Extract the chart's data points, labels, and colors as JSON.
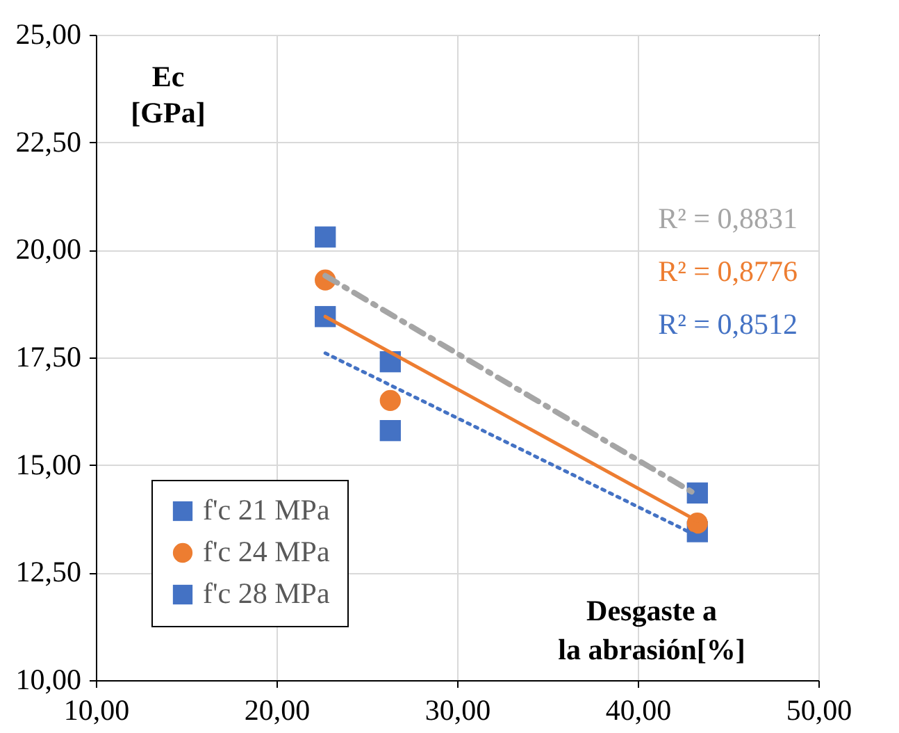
{
  "chart_data": {
    "type": "scatter",
    "xlabel": "Desgaste a\nla abrasión[%]",
    "ylabel": "Ec\n[GPa]",
    "xlim": [
      10,
      50
    ],
    "ylim": [
      10,
      25
    ],
    "xticks": [
      {
        "value": 10,
        "label": "10,00"
      },
      {
        "value": 20,
        "label": "20,00"
      },
      {
        "value": 30,
        "label": "30,00"
      },
      {
        "value": 40,
        "label": "40,00"
      },
      {
        "value": 50,
        "label": "50,00"
      }
    ],
    "yticks": [
      {
        "value": 10,
        "label": "10,00"
      },
      {
        "value": 12.5,
        "label": "12,50"
      },
      {
        "value": 15,
        "label": "15,00"
      },
      {
        "value": 17.5,
        "label": "17,50"
      },
      {
        "value": 20,
        "label": "20,00"
      },
      {
        "value": 22.5,
        "label": "22,50"
      },
      {
        "value": 25,
        "label": "25,00"
      }
    ],
    "grid": true,
    "legend": "bottom left",
    "series": [
      {
        "name": "f'c 21 MPa",
        "color": "#4472c4",
        "marker": "square",
        "x": [
          22.7,
          26.3,
          43.3
        ],
        "values": [
          20.3,
          17.4,
          14.35
        ]
      },
      {
        "name": "f'c 24 MPa",
        "color": "#ed7d31",
        "marker": "circle",
        "x": [
          22.7,
          26.3,
          43.3
        ],
        "values": [
          19.3,
          16.5,
          13.65
        ]
      },
      {
        "name": "f'c 28 MPa",
        "color": "#4472c4",
        "marker": "square",
        "x": [
          22.7,
          26.3,
          43.3
        ],
        "values": [
          18.45,
          15.8,
          13.45
        ]
      },
      {
        "type": "line",
        "color": "#a5a5a5",
        "line_style": "dashdot",
        "x": [
          22.7,
          43.3
        ],
        "values": [
          19.4,
          14.3
        ]
      },
      {
        "type": "line",
        "color": "#ed7d31",
        "line_style": "solid",
        "x": [
          22.7,
          43.3
        ],
        "values": [
          18.45,
          13.7
        ]
      },
      {
        "type": "line",
        "color": "#4472c4",
        "line_style": "dotted",
        "x": [
          22.7,
          43.3
        ],
        "values": [
          17.6,
          13.35
        ]
      }
    ],
    "annotations": [
      "R² = 0,8831",
      "R² = 0,8776",
      "R² = 0,8512"
    ]
  }
}
